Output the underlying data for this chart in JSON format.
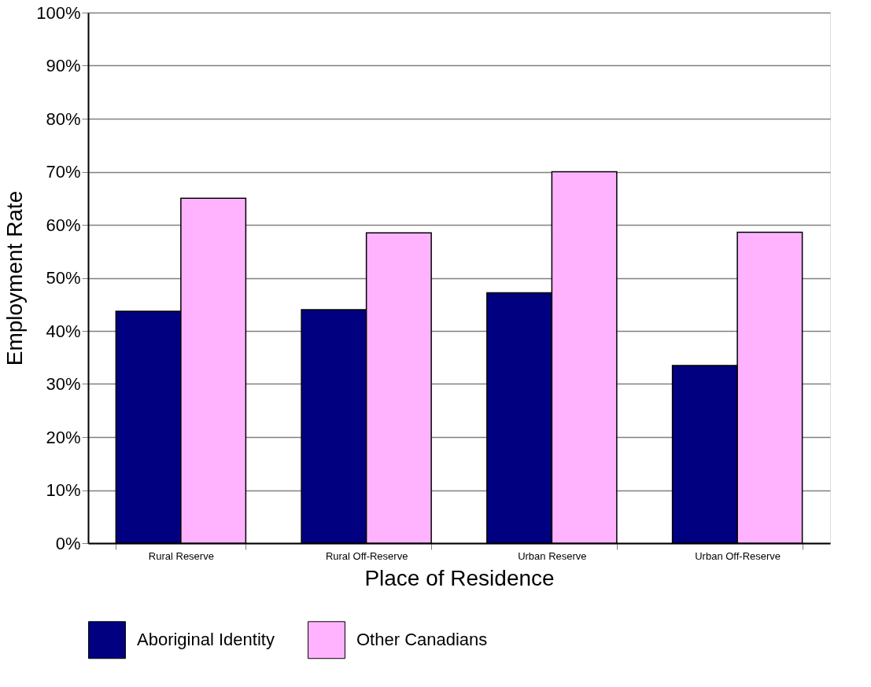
{
  "chart_data": {
    "type": "bar",
    "xlabel": "Place of Residence",
    "ylabel": "Employment Rate",
    "categories": [
      "Rural Reserve",
      "Rural Off-Reserve",
      "Urban Reserve",
      "Urban Off-Reserve"
    ],
    "series": [
      {
        "name": "Aboriginal Identity",
        "color": "#000080",
        "values": [
          43.7,
          44.0,
          47.2,
          33.5
        ]
      },
      {
        "name": "Other Canadians",
        "color": "#ffb3ff",
        "values": [
          65.0,
          58.5,
          70.0,
          58.6
        ]
      }
    ],
    "ylim": [
      0,
      100
    ],
    "yticks": [
      {
        "value": 0,
        "label": "0%"
      },
      {
        "value": 10,
        "label": "10%"
      },
      {
        "value": 20,
        "label": "20%"
      },
      {
        "value": 30,
        "label": "30%"
      },
      {
        "value": 40,
        "label": "40%"
      },
      {
        "value": 50,
        "label": "50%"
      },
      {
        "value": 60,
        "label": "60%"
      },
      {
        "value": 70,
        "label": "70%"
      },
      {
        "value": 80,
        "label": "80%"
      },
      {
        "value": 90,
        "label": "90%"
      },
      {
        "value": 100,
        "label": "100%"
      }
    ],
    "grid": "y",
    "legend": "bottom"
  }
}
